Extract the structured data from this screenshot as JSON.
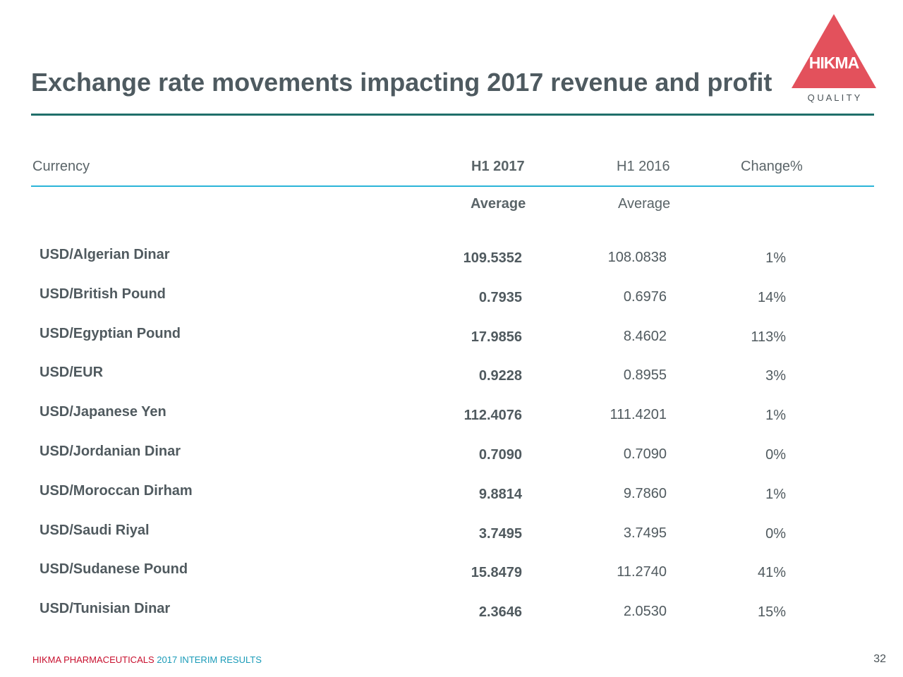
{
  "slide": {
    "title": "Exchange rate movements impacting 2017 revenue and profit",
    "logo": {
      "word": "HIKMA",
      "tagline": "Q U A L I T Y",
      "color": "#e3515c"
    }
  },
  "table": {
    "headers": {
      "currency": "Currency",
      "h1_2017": "H1 2017",
      "h1_2016": "H1 2016",
      "change": "Change%",
      "avg_2017": "Average",
      "avg_2016": "Average"
    },
    "rows": [
      {
        "pair": "USD/Algerian Dinar",
        "h1_2017": "109.5352",
        "h1_2016": "108.0838",
        "change": "1%"
      },
      {
        "pair": "USD/British Pound",
        "h1_2017": "0.7935",
        "h1_2016": "0.6976",
        "change": "14%"
      },
      {
        "pair": "USD/Egyptian Pound",
        "h1_2017": "17.9856",
        "h1_2016": "8.4602",
        "change": "113%"
      },
      {
        "pair": "USD/EUR",
        "h1_2017": "0.9228",
        "h1_2016": "0.8955",
        "change": "3%"
      },
      {
        "pair": "USD/Japanese Yen",
        "h1_2017": "112.4076",
        "h1_2016": "111.4201",
        "change": "1%"
      },
      {
        "pair": "USD/Jordanian Dinar",
        "h1_2017": "0.7090",
        "h1_2016": "0.7090",
        "change": "0%"
      },
      {
        "pair": "USD/Moroccan Dirham",
        "h1_2017": "9.8814",
        "h1_2016": "9.7860",
        "change": "1%"
      },
      {
        "pair": "USD/Saudi Riyal",
        "h1_2017": "3.7495",
        "h1_2016": "3.7495",
        "change": "0%"
      },
      {
        "pair": "USD/Sudanese Pound",
        "h1_2017": "15.8479",
        "h1_2016": "11.2740",
        "change": "41%"
      },
      {
        "pair": "USD/Tunisian Dinar",
        "h1_2017": "2.3646",
        "h1_2016": "2.0530",
        "change": "15%"
      }
    ]
  },
  "footer": {
    "brand": "HIKMA PHARMACEUTICALS",
    "subtitle": "2017 INTERIM RESULTS",
    "page": "32"
  }
}
